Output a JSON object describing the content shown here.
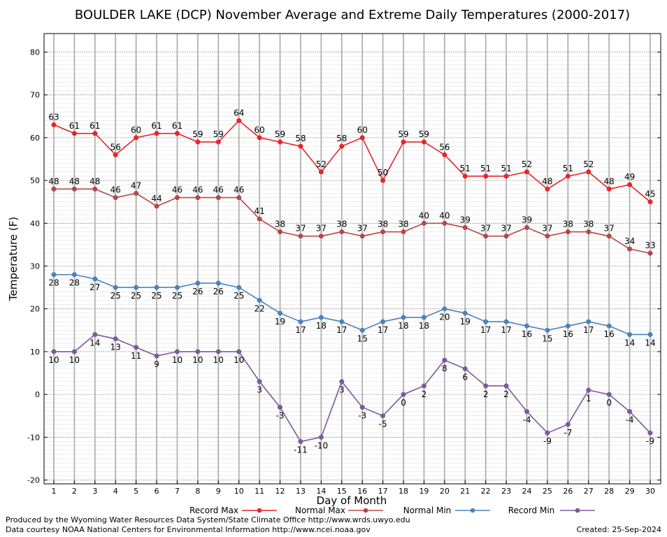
{
  "chart_data": {
    "type": "line",
    "title": "BOULDER LAKE (DCP) November Average and Extreme Daily Temperatures (2000-2017)",
    "xlabel": "Day of Month",
    "ylabel": "Temperature (F)",
    "ylim": [
      -20,
      80
    ],
    "yticks": [
      -20,
      -10,
      0,
      10,
      20,
      30,
      40,
      50,
      60,
      70,
      80
    ],
    "x": [
      1,
      2,
      3,
      4,
      5,
      6,
      7,
      8,
      9,
      10,
      11,
      12,
      13,
      14,
      15,
      16,
      17,
      18,
      19,
      20,
      21,
      22,
      23,
      24,
      25,
      26,
      27,
      28,
      29,
      30
    ],
    "grid": true,
    "legend_position": "bottom",
    "series": [
      {
        "name": "Record Max",
        "color": "#e8252a",
        "labels_above": true,
        "values": [
          63,
          61,
          61,
          56,
          60,
          61,
          61,
          59,
          59,
          64,
          60,
          59,
          58,
          52,
          58,
          60,
          50,
          59,
          59,
          56,
          51,
          51,
          51,
          52,
          48,
          51,
          52,
          48,
          49,
          45
        ]
      },
      {
        "name": "Normal Max",
        "color": "#b5484a",
        "labels_above": true,
        "values": [
          48,
          48,
          48,
          46,
          47,
          44,
          46,
          46,
          46,
          46,
          41,
          38,
          37,
          37,
          38,
          37,
          38,
          38,
          40,
          40,
          39,
          37,
          37,
          39,
          37,
          38,
          38,
          37,
          34,
          33
        ]
      },
      {
        "name": "Normal Min",
        "color": "#4a82bb",
        "labels_above": false,
        "values": [
          28,
          28,
          27,
          25,
          25,
          25,
          25,
          26,
          26,
          25,
          22,
          19,
          17,
          18,
          17,
          15,
          17,
          18,
          18,
          20,
          19,
          17,
          17,
          16,
          15,
          16,
          17,
          16,
          14,
          14
        ]
      },
      {
        "name": "Record Min",
        "color": "#7b5a9e",
        "labels_above": false,
        "values": [
          10,
          10,
          14,
          13,
          11,
          9,
          10,
          10,
          10,
          10,
          3,
          -3,
          -11,
          -10,
          3,
          -3,
          -5,
          0,
          2,
          8,
          6,
          2,
          2,
          -4,
          -9,
          -7,
          1,
          0,
          -4,
          -9
        ]
      }
    ]
  },
  "footer": {
    "credit_1": "Produced by the Wyoming Water Resources Data System/State Climate Office http://www.wrds.uwyo.edu",
    "credit_2": "Data courtesy NOAA National Centers for Environmental Information http://www.ncei.noaa.gov",
    "created": "Created:  25-Sep-2024"
  }
}
